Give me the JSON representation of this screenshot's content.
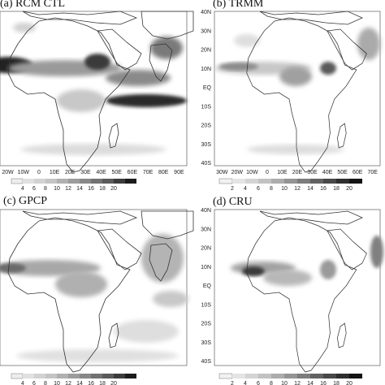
{
  "panels": {
    "a": {
      "title": "(a) RCM CTL",
      "x_ticks": [
        "20W",
        "10W",
        "0",
        "10E",
        "20E",
        "30E",
        "40E",
        "50E",
        "60E",
        "70E",
        "80E",
        "90E"
      ],
      "y_ticks": [],
      "colorbar": [
        "4",
        "6",
        "8",
        "10",
        "12",
        "14",
        "16",
        "18",
        "20"
      ]
    },
    "b": {
      "title": "(b) TRMM",
      "x_ticks": [
        "30W",
        "20W",
        "10W",
        "0",
        "10E",
        "20E",
        "30E",
        "40E",
        "50E",
        "60E",
        "70E"
      ],
      "y_ticks": [
        "40N",
        "30N",
        "20N",
        "10N",
        "EQ",
        "10S",
        "20S",
        "30S",
        "40S"
      ],
      "colorbar": [
        "2",
        "4",
        "6",
        "8",
        "10",
        "12",
        "14",
        "16",
        "18",
        "20"
      ]
    },
    "c": {
      "title": "(c) GPCP",
      "x_ticks": [],
      "y_ticks": [],
      "colorbar": [
        "4",
        "6",
        "8",
        "10",
        "12",
        "14",
        "16",
        "18",
        "20"
      ]
    },
    "d": {
      "title": "(d) CRU",
      "x_ticks": [],
      "y_ticks": [
        "40N",
        "30N",
        "20N",
        "10N",
        "EQ",
        "10S",
        "20S",
        "30S",
        "40S"
      ],
      "colorbar": [
        "2",
        "4",
        "6",
        "8",
        "10",
        "12",
        "14",
        "16",
        "18",
        "20"
      ]
    }
  },
  "colors": {
    "coast": "#333333",
    "shade_light": "#dcdcdc",
    "shade_mid": "#a9a9a9",
    "shade_dark": "#4a4a4a"
  }
}
